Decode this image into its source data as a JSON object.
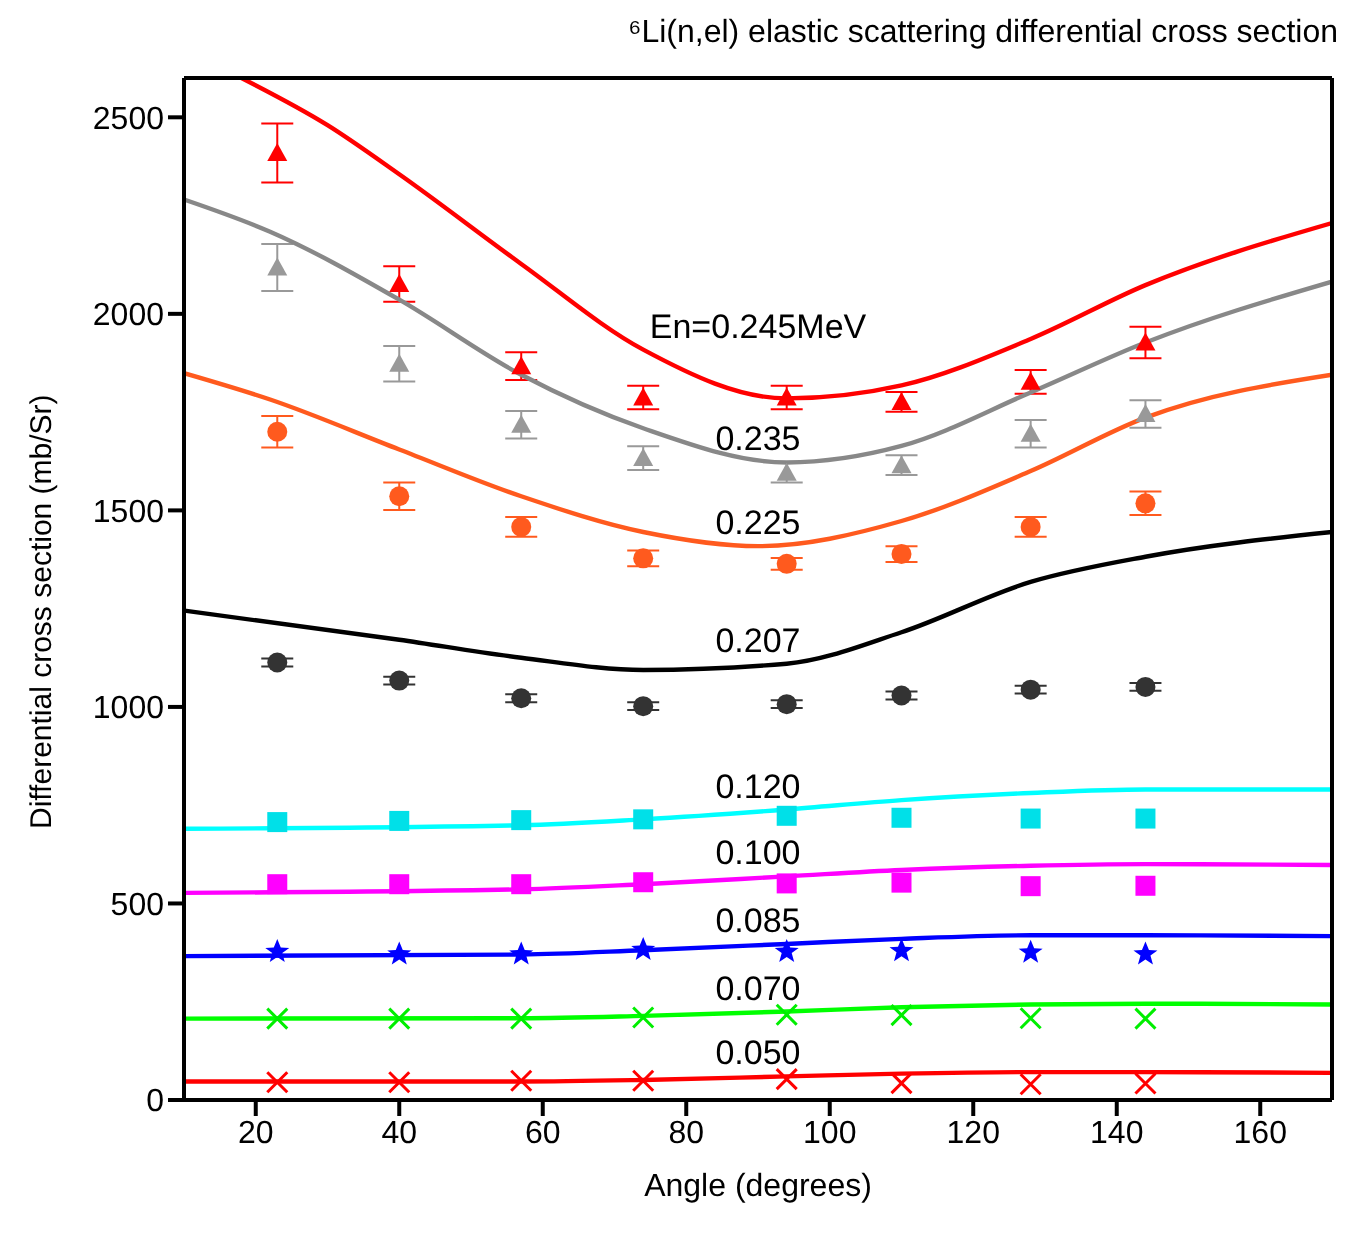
{
  "chart_data": {
    "type": "line",
    "title": "⁶Li(n,el) elastic scattering differential cross section",
    "xlabel": "Angle (degrees)",
    "ylabel": "Differential cross section (mb/Sr)",
    "xlim": [
      10,
      170
    ],
    "xticks": [
      20,
      40,
      60,
      80,
      100,
      120,
      140,
      160
    ],
    "ylim": [
      0,
      2600
    ],
    "yticks": [
      0,
      500,
      1000,
      1500,
      2000,
      2500
    ],
    "grid": false,
    "legend": false,
    "line_style": "solid",
    "series": [
      {
        "type": "scatter",
        "marker": "triangle",
        "color": "#ff0000",
        "x": [
          23,
          40,
          57,
          74,
          94,
          110,
          128,
          144
        ],
        "values": [
          2409,
          2076,
          1867,
          1787,
          1787,
          1776,
          1827,
          1927
        ],
        "errors": [
          75,
          45,
          35,
          30,
          30,
          25,
          30,
          40
        ]
      },
      {
        "type": "scatter",
        "marker": "triangle",
        "color": "#999999",
        "x": [
          23,
          40,
          57,
          74,
          94,
          110,
          128,
          144
        ],
        "values": [
          2118,
          1873,
          1718,
          1633,
          1596,
          1615,
          1695,
          1745
        ],
        "errors": [
          60,
          45,
          35,
          30,
          25,
          25,
          35,
          35
        ]
      },
      {
        "type": "scatter",
        "marker": "circle",
        "color": "#ff5a1e",
        "x": [
          23,
          40,
          57,
          74,
          94,
          110,
          128,
          144
        ],
        "values": [
          1700,
          1536,
          1458,
          1378,
          1364,
          1389,
          1458,
          1518
        ],
        "errors": [
          40,
          35,
          25,
          20,
          15,
          20,
          25,
          30
        ]
      },
      {
        "type": "scatter",
        "marker": "circle",
        "color": "#333333",
        "x": [
          23,
          40,
          57,
          74,
          94,
          110,
          128,
          144
        ],
        "values": [
          1113,
          1067,
          1022,
          1002,
          1007,
          1029,
          1044,
          1051
        ],
        "errors": [
          10,
          10,
          10,
          10,
          10,
          10,
          10,
          10
        ]
      },
      {
        "type": "scatter",
        "marker": "square",
        "color": "#00e0e8",
        "x": [
          23,
          40,
          57,
          74,
          94,
          110,
          128,
          144
        ],
        "values": [
          707,
          710,
          712,
          714,
          723,
          718,
          716,
          716
        ]
      },
      {
        "type": "scatter",
        "marker": "square",
        "color": "#ff00ff",
        "x": [
          23,
          40,
          57,
          74,
          94,
          110,
          128,
          144
        ],
        "values": [
          549,
          549,
          549,
          554,
          551,
          553,
          544,
          545
        ]
      },
      {
        "type": "scatter",
        "marker": "star",
        "color": "#0000ff",
        "x": [
          23,
          40,
          57,
          74,
          94,
          110,
          128,
          144
        ],
        "values": [
          379,
          373,
          373,
          384,
          379,
          381,
          377,
          373
        ]
      },
      {
        "type": "scatter",
        "marker": "cross",
        "color": "#00ee00",
        "x": [
          23,
          40,
          57,
          74,
          94,
          110,
          128,
          144
        ],
        "values": [
          207,
          207,
          207,
          210,
          217,
          216,
          208,
          207
        ]
      },
      {
        "type": "scatter",
        "marker": "cross",
        "color": "#ff0000",
        "x": [
          23,
          40,
          57,
          74,
          94,
          110,
          128,
          144
        ],
        "values": [
          45,
          45,
          49,
          49,
          53,
          43,
          40,
          42
        ]
      },
      {
        "name": "En=0.245MeV",
        "marker": "none",
        "color": "#ff0000",
        "x": [
          18,
          30,
          40,
          57,
          74,
          94,
          110,
          128,
          144,
          170
        ],
        "values": [
          2600,
          2480,
          2355,
          2127,
          1909,
          1785,
          1818,
          1936,
          2073,
          2231
        ]
      },
      {
        "name": "0.235",
        "marker": "none",
        "color": "#888888",
        "x": [
          10,
          22,
          40,
          57,
          74,
          94,
          110,
          128,
          144,
          170
        ],
        "values": [
          2291,
          2209,
          2036,
          1845,
          1709,
          1622,
          1664,
          1800,
          1927,
          2082
        ]
      },
      {
        "name": "0.225",
        "marker": "none",
        "color": "#ff5a1e",
        "x": [
          10,
          22,
          40,
          57,
          74,
          90,
          110,
          128,
          144,
          170
        ],
        "values": [
          1849,
          1782,
          1655,
          1536,
          1445,
          1409,
          1473,
          1600,
          1736,
          1845
        ]
      },
      {
        "name": "0.207",
        "marker": "none",
        "color": "#000000",
        "x": [
          10,
          40,
          57,
          74,
          94,
          110,
          128,
          144,
          170
        ],
        "values": [
          1245,
          1171,
          1125,
          1094,
          1110,
          1190,
          1318,
          1382,
          1445
        ]
      },
      {
        "name": "0.120",
        "marker": "none",
        "color": "#00ffff",
        "x": [
          10,
          57,
          74,
          94,
          110,
          128,
          144,
          170
        ],
        "values": [
          690,
          699,
          714,
          739,
          763,
          781,
          790,
          790
        ]
      },
      {
        "name": "0.100",
        "marker": "none",
        "color": "#ff00ff",
        "x": [
          10,
          57,
          74,
          94,
          110,
          128,
          144,
          170
        ],
        "values": [
          527,
          536,
          549,
          569,
          585,
          596,
          600,
          598
        ]
      },
      {
        "name": "0.085",
        "marker": "none",
        "color": "#0000ff",
        "x": [
          10,
          57,
          74,
          94,
          110,
          128,
          144,
          170
        ],
        "values": [
          366,
          370,
          381,
          397,
          410,
          419,
          419,
          417
        ]
      },
      {
        "name": "0.070",
        "marker": "none",
        "color": "#00ff00",
        "x": [
          10,
          57,
          74,
          94,
          110,
          128,
          144,
          170
        ],
        "values": [
          207,
          208,
          214,
          225,
          236,
          243,
          245,
          243
        ]
      },
      {
        "name": "0.050",
        "marker": "none",
        "color": "#ff0000",
        "x": [
          10,
          57,
          74,
          94,
          110,
          128,
          144,
          170
        ],
        "values": [
          47,
          47,
          51,
          60,
          67,
          71,
          71,
          69
        ]
      }
    ]
  }
}
